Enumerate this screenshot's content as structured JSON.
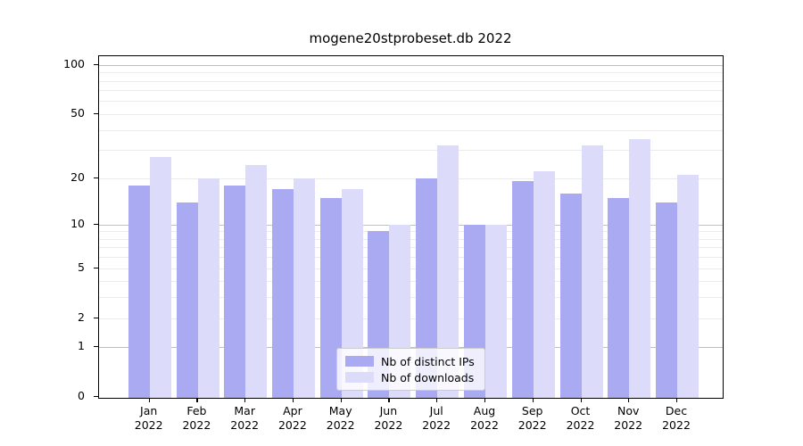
{
  "title": "mogene20stprobeset.db 2022",
  "chart_data": {
    "type": "bar",
    "title": "mogene20stprobeset.db 2022",
    "categories": [
      "Jan",
      "Feb",
      "Mar",
      "Apr",
      "May",
      "Jun",
      "Jul",
      "Aug",
      "Sep",
      "Oct",
      "Nov",
      "Dec"
    ],
    "category_year": "2022",
    "series": [
      {
        "name": "Nb of distinct IPs",
        "color": "#aaaaf2",
        "values": [
          18,
          14,
          18,
          17,
          15,
          9,
          20,
          10,
          19,
          16,
          15,
          14
        ]
      },
      {
        "name": "Nb of downloads",
        "color": "#dcdcfa",
        "values": [
          27,
          20,
          24,
          20,
          17,
          10,
          32,
          10,
          22,
          32,
          35,
          21
        ]
      }
    ],
    "xlabel": "",
    "ylabel": "",
    "yscale": "log1p",
    "ylim": [
      0,
      113
    ],
    "yticks": [
      100,
      50,
      20,
      10,
      5,
      2,
      1,
      0
    ],
    "major_gridlines": [
      1,
      10,
      100
    ],
    "minor_gridlines": [
      2,
      3,
      4,
      5,
      6,
      7,
      8,
      9,
      20,
      30,
      40,
      50,
      60,
      70,
      80,
      90
    ],
    "grid": true,
    "legend_position": "lower center"
  },
  "legend": {
    "items": [
      {
        "label": "Nb of distinct IPs",
        "color": "#aaaaf2"
      },
      {
        "label": "Nb of downloads",
        "color": "#dcdcfa"
      }
    ]
  }
}
